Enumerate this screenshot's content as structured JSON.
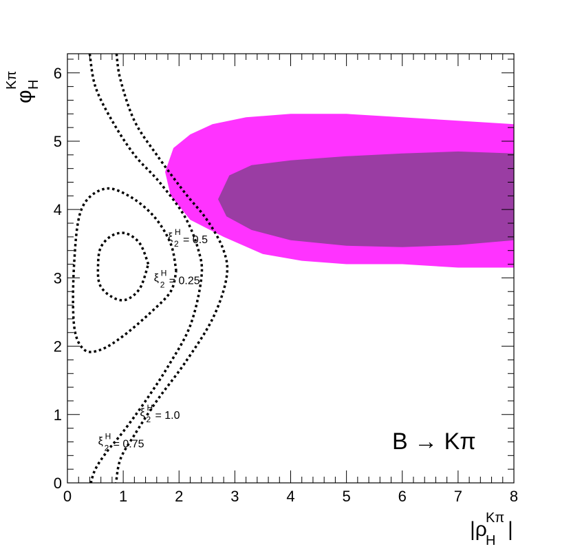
{
  "chart_data": {
    "type": "contour",
    "process_label": "B → Kπ",
    "xlabel": "|ρ_H^{Kπ}|",
    "ylabel": "φ_H^{Kπ}",
    "xlim": [
      0,
      8
    ],
    "ylim": [
      0,
      6.28
    ],
    "x_ticks": [
      "0",
      "1",
      "2",
      "3",
      "4",
      "5",
      "6",
      "7",
      "8"
    ],
    "y_ticks": [
      "0",
      "1",
      "2",
      "3",
      "4",
      "5",
      "6"
    ],
    "regions": [
      {
        "level": "outer",
        "color": "#ff33ff",
        "outline": [
          [
            1.75,
            4.55
          ],
          [
            1.9,
            4.9
          ],
          [
            2.2,
            5.1
          ],
          [
            2.6,
            5.25
          ],
          [
            3.2,
            5.35
          ],
          [
            4.0,
            5.4
          ],
          [
            5.0,
            5.4
          ],
          [
            6.0,
            5.35
          ],
          [
            7.0,
            5.3
          ],
          [
            8.0,
            5.25
          ],
          [
            8.0,
            3.15
          ],
          [
            7.0,
            3.15
          ],
          [
            6.0,
            3.2
          ],
          [
            5.0,
            3.2
          ],
          [
            4.2,
            3.25
          ],
          [
            3.5,
            3.35
          ],
          [
            2.8,
            3.6
          ],
          [
            2.2,
            3.85
          ],
          [
            1.85,
            4.2
          ]
        ]
      },
      {
        "level": "inner",
        "color": "#9a3da3",
        "outline": [
          [
            2.7,
            4.15
          ],
          [
            2.9,
            4.5
          ],
          [
            3.3,
            4.65
          ],
          [
            4.0,
            4.72
          ],
          [
            5.0,
            4.78
          ],
          [
            6.0,
            4.82
          ],
          [
            7.0,
            4.85
          ],
          [
            8.0,
            4.82
          ],
          [
            8.0,
            3.55
          ],
          [
            7.0,
            3.48
          ],
          [
            6.0,
            3.45
          ],
          [
            5.0,
            3.47
          ],
          [
            4.0,
            3.55
          ],
          [
            3.3,
            3.7
          ],
          [
            2.85,
            3.9
          ]
        ]
      }
    ],
    "contours": [
      {
        "label_xi": "ξ",
        "label_sub": "2",
        "label_sup": "H",
        "label_value": "= 0.25",
        "points": [
          [
            1.45,
            3.2
          ],
          [
            1.3,
            3.5
          ],
          [
            1.05,
            3.65
          ],
          [
            0.8,
            3.62
          ],
          [
            0.6,
            3.45
          ],
          [
            0.55,
            3.2
          ],
          [
            0.58,
            2.9
          ],
          [
            0.8,
            2.72
          ],
          [
            1.05,
            2.68
          ],
          [
            1.3,
            2.85
          ],
          [
            1.45,
            3.2
          ]
        ]
      },
      {
        "label_xi": "ξ",
        "label_sub": "2",
        "label_sup": "H",
        "label_value": "= 0.5",
        "points": [
          [
            1.95,
            3.1
          ],
          [
            1.85,
            3.5
          ],
          [
            1.55,
            3.9
          ],
          [
            1.1,
            4.2
          ],
          [
            0.65,
            4.3
          ],
          [
            0.25,
            4.0
          ],
          [
            0.12,
            3.2
          ],
          [
            0.12,
            2.3
          ],
          [
            0.3,
            1.95
          ],
          [
            0.6,
            1.95
          ],
          [
            1.0,
            2.15
          ],
          [
            1.5,
            2.5
          ],
          [
            1.85,
            2.8
          ],
          [
            1.95,
            3.1
          ]
        ]
      },
      {
        "label_xi": "ξ",
        "label_sub": "2",
        "label_sup": "H",
        "label_value": "= 1.0",
        "points": [
          [
            0.4,
            6.28
          ],
          [
            0.5,
            5.8
          ],
          [
            0.8,
            5.3
          ],
          [
            1.2,
            4.8
          ],
          [
            1.65,
            4.4
          ],
          [
            2.1,
            3.9
          ],
          [
            2.35,
            3.4
          ],
          [
            2.4,
            3.0
          ],
          [
            2.2,
            2.3
          ],
          [
            1.8,
            1.7
          ],
          [
            1.4,
            1.2
          ],
          [
            1.0,
            0.75
          ],
          [
            0.7,
            0.45
          ],
          [
            0.5,
            0.2
          ],
          [
            0.42,
            0.0
          ]
        ]
      },
      {
        "label_xi": "ξ",
        "label_sub": "2",
        "label_sup": "H",
        "label_value": "= 0.75",
        "points": [
          [
            0.88,
            6.28
          ],
          [
            0.95,
            5.9
          ],
          [
            1.2,
            5.3
          ],
          [
            1.6,
            4.8
          ],
          [
            2.1,
            4.25
          ],
          [
            2.5,
            3.85
          ],
          [
            2.8,
            3.4
          ],
          [
            2.85,
            3.0
          ],
          [
            2.6,
            2.4
          ],
          [
            2.1,
            1.75
          ],
          [
            1.6,
            1.2
          ],
          [
            1.2,
            0.7
          ],
          [
            0.95,
            0.35
          ],
          [
            0.87,
            0.0
          ]
        ]
      }
    ],
    "annotations": [
      {
        "sym": "ξ",
        "sub": "2",
        "sup": "H",
        "text": "= 0.5",
        "x": 1.8,
        "y": 3.55
      },
      {
        "sym": "ξ",
        "sub": "2",
        "sup": "H",
        "text": "= 0.25",
        "x": 1.55,
        "y": 2.95
      },
      {
        "sym": "ξ",
        "sub": "2",
        "sup": "H",
        "text": "= 1.0",
        "x": 1.3,
        "y": 0.98
      },
      {
        "sym": "ξ",
        "sub": "2",
        "sup": "H",
        "text": "= 0.75",
        "x": 0.55,
        "y": 0.56
      }
    ]
  }
}
